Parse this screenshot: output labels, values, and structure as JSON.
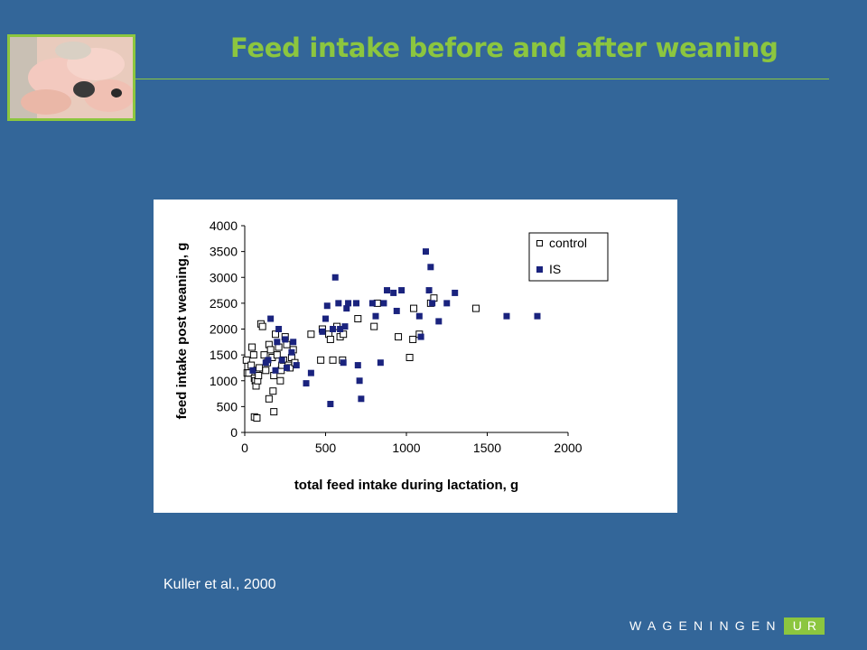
{
  "header": {
    "title": "Feed intake before and after weaning",
    "photo_icon": "piglets-photo"
  },
  "citation": "Kuller et al., 2000",
  "logo": {
    "text": "WAGENINGEN",
    "box_text": "UR"
  },
  "colors": {
    "background": "#336699",
    "accent": "#8cc63f",
    "is_series": "#1a237e"
  },
  "chart_data": {
    "type": "scatter",
    "title": "",
    "xlabel": "total feed intake during lactation, g",
    "ylabel": "feed intake post weaning, g",
    "xlim": [
      0,
      2000
    ],
    "ylim": [
      0,
      4000
    ],
    "xticks": [
      0,
      500,
      1000,
      1500,
      2000
    ],
    "yticks": [
      0,
      500,
      1000,
      1500,
      2000,
      2500,
      3000,
      3500,
      4000
    ],
    "grid": false,
    "legend_position": "top-right",
    "series": [
      {
        "name": "control",
        "marker": "open-square",
        "points": [
          [
            10,
            1400
          ],
          [
            15,
            1150
          ],
          [
            25,
            1150
          ],
          [
            40,
            1300
          ],
          [
            45,
            1650
          ],
          [
            55,
            1500
          ],
          [
            60,
            1050
          ],
          [
            65,
            1000
          ],
          [
            70,
            900
          ],
          [
            75,
            1200
          ],
          [
            80,
            1000
          ],
          [
            85,
            1100
          ],
          [
            90,
            1250
          ],
          [
            100,
            2100
          ],
          [
            110,
            2050
          ],
          [
            120,
            1500
          ],
          [
            130,
            1200
          ],
          [
            140,
            1350
          ],
          [
            150,
            1700
          ],
          [
            160,
            1600
          ],
          [
            170,
            1450
          ],
          [
            175,
            800
          ],
          [
            180,
            1100
          ],
          [
            190,
            1900
          ],
          [
            200,
            1500
          ],
          [
            210,
            1650
          ],
          [
            220,
            1000
          ],
          [
            225,
            1200
          ],
          [
            230,
            1300
          ],
          [
            240,
            1400
          ],
          [
            250,
            1850
          ],
          [
            260,
            1700
          ],
          [
            270,
            1300
          ],
          [
            280,
            1250
          ],
          [
            290,
            1450
          ],
          [
            300,
            1600
          ],
          [
            310,
            1350
          ],
          [
            60,
            300
          ],
          [
            75,
            280
          ],
          [
            180,
            400
          ],
          [
            150,
            650
          ],
          [
            410,
            1900
          ],
          [
            470,
            1400
          ],
          [
            480,
            2000
          ],
          [
            520,
            1900
          ],
          [
            530,
            1800
          ],
          [
            545,
            1400
          ],
          [
            570,
            2050
          ],
          [
            590,
            1850
          ],
          [
            605,
            1400
          ],
          [
            610,
            1900
          ],
          [
            700,
            2200
          ],
          [
            800,
            2050
          ],
          [
            820,
            2500
          ],
          [
            950,
            1850
          ],
          [
            1020,
            1450
          ],
          [
            1040,
            1800
          ],
          [
            1045,
            2400
          ],
          [
            1080,
            1900
          ],
          [
            1150,
            2500
          ],
          [
            1170,
            2600
          ],
          [
            1430,
            2400
          ]
        ]
      },
      {
        "name": "IS",
        "marker": "filled-square",
        "points": [
          [
            50,
            1200
          ],
          [
            130,
            1350
          ],
          [
            145,
            1400
          ],
          [
            160,
            2200
          ],
          [
            190,
            1200
          ],
          [
            200,
            1750
          ],
          [
            210,
            2000
          ],
          [
            230,
            1400
          ],
          [
            250,
            1800
          ],
          [
            260,
            1250
          ],
          [
            290,
            1550
          ],
          [
            300,
            1750
          ],
          [
            320,
            1300
          ],
          [
            380,
            950
          ],
          [
            410,
            1150
          ],
          [
            480,
            1950
          ],
          [
            500,
            2200
          ],
          [
            510,
            2450
          ],
          [
            530,
            550
          ],
          [
            545,
            2000
          ],
          [
            560,
            3000
          ],
          [
            580,
            2500
          ],
          [
            590,
            2000
          ],
          [
            610,
            1350
          ],
          [
            620,
            2050
          ],
          [
            630,
            2400
          ],
          [
            640,
            2500
          ],
          [
            690,
            2500
          ],
          [
            700,
            1300
          ],
          [
            710,
            1000
          ],
          [
            720,
            650
          ],
          [
            790,
            2500
          ],
          [
            810,
            2250
          ],
          [
            840,
            1350
          ],
          [
            860,
            2500
          ],
          [
            880,
            2750
          ],
          [
            920,
            2700
          ],
          [
            940,
            2350
          ],
          [
            970,
            2750
          ],
          [
            1080,
            2250
          ],
          [
            1090,
            1850
          ],
          [
            1120,
            3500
          ],
          [
            1140,
            2750
          ],
          [
            1150,
            3200
          ],
          [
            1160,
            2500
          ],
          [
            1200,
            2150
          ],
          [
            1250,
            2500
          ],
          [
            1300,
            2700
          ],
          [
            1620,
            2250
          ],
          [
            1810,
            2250
          ]
        ]
      }
    ]
  }
}
